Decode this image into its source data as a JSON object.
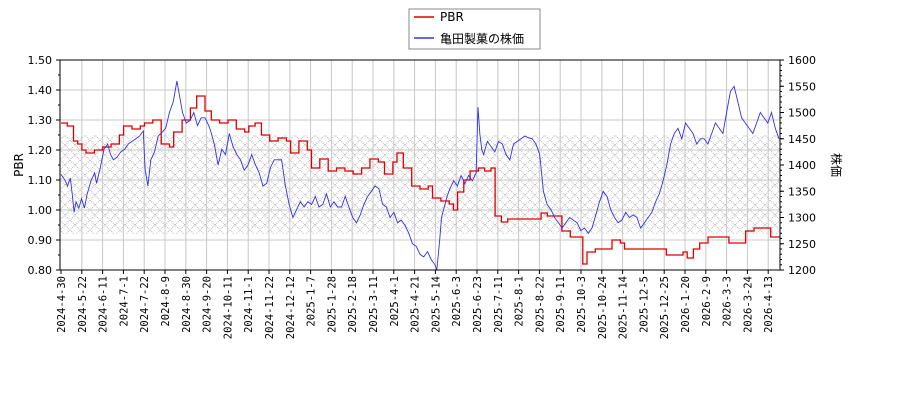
{
  "chart_data": {
    "type": "line",
    "title": "",
    "legend": {
      "position": "top-center",
      "entries": [
        {
          "label": "PBR",
          "color": "#dd0000"
        },
        {
          "label": "亀田製菓の株価",
          "color": "#3333dd"
        }
      ]
    },
    "xlabel": "",
    "ylabel_left": "PBR",
    "ylabel_right": "株価",
    "ylim_left": [
      0.8,
      1.5
    ],
    "ylim_right": [
      1200,
      1600
    ],
    "yticks_left": [
      "0.80",
      "0.90",
      "1.00",
      "1.10",
      "1.20",
      "1.30",
      "1.40",
      "1.50"
    ],
    "yticks_right": [
      "1200",
      "1250",
      "1300",
      "1350",
      "1400",
      "1450",
      "1500",
      "1550",
      "1600"
    ],
    "grid": true,
    "hatched_band_pbr": [
      0.92,
      1.25
    ],
    "categories": [
      "2024-4-30",
      "2024-5-22",
      "2024-6-11",
      "2024-7-1",
      "2024-7-22",
      "2024-8-9",
      "2024-8-30",
      "2024-9-20",
      "2024-10-11",
      "2024-11-1",
      "2024-11-22",
      "2024-12-12",
      "2025-1-7",
      "2025-1-28",
      "2025-2-18",
      "2025-3-11",
      "2025-4-1",
      "2025-4-21",
      "2025-5-14",
      "2025-6-3",
      "2025-6-23",
      "2025-7-11",
      "2025-8-1",
      "2025-8-22",
      "2025-9-11",
      "2025-10-3",
      "2025-10-24",
      "2025-11-14",
      "2025-12-5",
      "2025-12-25",
      "2026-1-20",
      "2026-2-9",
      "2026-3-3",
      "2026-3-24",
      "2026-4-13"
    ],
    "series": [
      {
        "name": "PBR",
        "axis": "left",
        "color": "#dd0000",
        "points": [
          [
            0.0,
            1.29
          ],
          [
            0.3,
            1.28
          ],
          [
            0.6,
            1.23
          ],
          [
            0.8,
            1.22
          ],
          [
            1.0,
            1.2
          ],
          [
            1.2,
            1.19
          ],
          [
            1.6,
            1.2
          ],
          [
            2.0,
            1.21
          ],
          [
            2.4,
            1.22
          ],
          [
            2.8,
            1.25
          ],
          [
            3.0,
            1.28
          ],
          [
            3.4,
            1.27
          ],
          [
            3.8,
            1.28
          ],
          [
            4.0,
            1.29
          ],
          [
            4.4,
            1.3
          ],
          [
            4.7,
            1.3
          ],
          [
            4.8,
            1.22
          ],
          [
            5.2,
            1.21
          ],
          [
            5.4,
            1.26
          ],
          [
            5.8,
            1.3
          ],
          [
            6.2,
            1.34
          ],
          [
            6.5,
            1.38
          ],
          [
            6.9,
            1.33
          ],
          [
            7.2,
            1.3
          ],
          [
            7.6,
            1.29
          ],
          [
            8.0,
            1.3
          ],
          [
            8.4,
            1.27
          ],
          [
            8.8,
            1.26
          ],
          [
            9.0,
            1.28
          ],
          [
            9.3,
            1.29
          ],
          [
            9.6,
            1.25
          ],
          [
            10.0,
            1.23
          ],
          [
            10.4,
            1.24
          ],
          [
            10.8,
            1.23
          ],
          [
            11.0,
            1.19
          ],
          [
            11.4,
            1.23
          ],
          [
            11.8,
            1.2
          ],
          [
            12.0,
            1.14
          ],
          [
            12.4,
            1.17
          ],
          [
            12.8,
            1.13
          ],
          [
            13.2,
            1.14
          ],
          [
            13.6,
            1.13
          ],
          [
            14.0,
            1.12
          ],
          [
            14.4,
            1.14
          ],
          [
            14.8,
            1.17
          ],
          [
            15.2,
            1.16
          ],
          [
            15.5,
            1.12
          ],
          [
            15.9,
            1.16
          ],
          [
            16.1,
            1.19
          ],
          [
            16.4,
            1.14
          ],
          [
            16.8,
            1.08
          ],
          [
            17.2,
            1.07
          ],
          [
            17.6,
            1.08
          ],
          [
            17.8,
            1.04
          ],
          [
            18.2,
            1.03
          ],
          [
            18.6,
            1.02
          ],
          [
            18.8,
            1.0
          ],
          [
            19.0,
            1.06
          ],
          [
            19.3,
            1.1
          ],
          [
            19.6,
            1.13
          ],
          [
            20.0,
            1.14
          ],
          [
            20.3,
            1.13
          ],
          [
            20.6,
            1.14
          ],
          [
            20.8,
            0.98
          ],
          [
            21.1,
            0.96
          ],
          [
            21.4,
            0.97
          ],
          [
            21.8,
            0.97
          ],
          [
            22.2,
            0.97
          ],
          [
            22.6,
            0.97
          ],
          [
            23.0,
            0.99
          ],
          [
            23.3,
            0.98
          ],
          [
            23.8,
            0.98
          ],
          [
            24.0,
            0.93
          ],
          [
            24.4,
            0.91
          ],
          [
            24.8,
            0.91
          ],
          [
            25.0,
            0.82
          ],
          [
            25.2,
            0.86
          ],
          [
            25.6,
            0.87
          ],
          [
            26.0,
            0.87
          ],
          [
            26.4,
            0.9
          ],
          [
            26.8,
            0.89
          ],
          [
            27.0,
            0.87
          ],
          [
            27.6,
            0.87
          ],
          [
            28.0,
            0.87
          ],
          [
            28.6,
            0.87
          ],
          [
            29.0,
            0.85
          ],
          [
            29.4,
            0.85
          ],
          [
            29.8,
            0.86
          ],
          [
            30.0,
            0.84
          ],
          [
            30.3,
            0.87
          ],
          [
            30.6,
            0.89
          ],
          [
            31.0,
            0.91
          ],
          [
            31.6,
            0.91
          ],
          [
            32.0,
            0.89
          ],
          [
            32.6,
            0.89
          ],
          [
            32.8,
            0.93
          ],
          [
            33.2,
            0.94
          ],
          [
            33.6,
            0.94
          ],
          [
            34.0,
            0.91
          ],
          [
            34.4,
            0.91
          ]
        ]
      },
      {
        "name": "亀田製菓の株価",
        "axis": "right",
        "color": "#3333dd",
        "points": [
          [
            0.0,
            1382
          ],
          [
            0.2,
            1372
          ],
          [
            0.35,
            1360
          ],
          [
            0.5,
            1375
          ],
          [
            0.6,
            1345
          ],
          [
            0.7,
            1310
          ],
          [
            0.8,
            1330
          ],
          [
            0.95,
            1318
          ],
          [
            1.1,
            1336
          ],
          [
            1.25,
            1318
          ],
          [
            1.4,
            1345
          ],
          [
            1.6,
            1370
          ],
          [
            1.8,
            1385
          ],
          [
            1.9,
            1365
          ],
          [
            2.1,
            1395
          ],
          [
            2.3,
            1430
          ],
          [
            2.5,
            1440
          ],
          [
            2.65,
            1420
          ],
          [
            2.8,
            1410
          ],
          [
            3.0,
            1415
          ],
          [
            3.2,
            1425
          ],
          [
            3.4,
            1430
          ],
          [
            3.6,
            1440
          ],
          [
            3.8,
            1445
          ],
          [
            4.0,
            1450
          ],
          [
            4.2,
            1455
          ],
          [
            4.4,
            1465
          ],
          [
            4.5,
            1392
          ],
          [
            4.65,
            1360
          ],
          [
            4.8,
            1410
          ],
          [
            5.0,
            1425
          ],
          [
            5.2,
            1455
          ],
          [
            5.4,
            1462
          ],
          [
            5.6,
            1470
          ],
          [
            5.8,
            1500
          ],
          [
            6.0,
            1520
          ],
          [
            6.2,
            1560
          ],
          [
            6.35,
            1530
          ],
          [
            6.5,
            1500
          ],
          [
            6.7,
            1480
          ],
          [
            6.9,
            1485
          ],
          [
            7.1,
            1500
          ],
          [
            7.3,
            1475
          ],
          [
            7.5,
            1490
          ],
          [
            7.7,
            1490
          ],
          [
            7.9,
            1475
          ],
          [
            8.0,
            1465
          ],
          [
            8.2,
            1440
          ],
          [
            8.4,
            1400
          ],
          [
            8.6,
            1430
          ],
          [
            8.8,
            1420
          ],
          [
            9.0,
            1460
          ],
          [
            9.2,
            1435
          ],
          [
            9.4,
            1420
          ],
          [
            9.6,
            1410
          ],
          [
            9.8,
            1390
          ],
          [
            10.0,
            1400
          ],
          [
            10.2,
            1420
          ],
          [
            10.4,
            1400
          ],
          [
            10.6,
            1385
          ],
          [
            10.8,
            1360
          ],
          [
            11.0,
            1365
          ],
          [
            11.2,
            1395
          ],
          [
            11.4,
            1410
          ],
          [
            11.6,
            1410
          ],
          [
            11.8,
            1410
          ],
          [
            12.0,
            1360
          ],
          [
            12.2,
            1325
          ],
          [
            12.4,
            1300
          ],
          [
            12.6,
            1315
          ],
          [
            12.8,
            1330
          ],
          [
            13.0,
            1320
          ],
          [
            13.2,
            1330
          ],
          [
            13.4,
            1325
          ],
          [
            13.6,
            1340
          ],
          [
            13.8,
            1320
          ],
          [
            14.0,
            1325
          ],
          [
            14.2,
            1345
          ],
          [
            14.4,
            1320
          ],
          [
            14.6,
            1330
          ],
          [
            14.8,
            1320
          ],
          [
            15.0,
            1320
          ],
          [
            15.2,
            1340
          ],
          [
            15.4,
            1320
          ],
          [
            15.6,
            1300
          ],
          [
            15.8,
            1290
          ],
          [
            16.0,
            1305
          ],
          [
            16.2,
            1325
          ],
          [
            16.4,
            1340
          ],
          [
            16.6,
            1350
          ],
          [
            16.8,
            1360
          ],
          [
            17.0,
            1355
          ],
          [
            17.2,
            1325
          ],
          [
            17.4,
            1320
          ],
          [
            17.6,
            1300
          ],
          [
            17.8,
            1310
          ],
          [
            18.0,
            1290
          ],
          [
            18.2,
            1295
          ],
          [
            18.4,
            1285
          ],
          [
            18.6,
            1270
          ],
          [
            18.8,
            1250
          ],
          [
            19.0,
            1245
          ],
          [
            19.2,
            1230
          ],
          [
            19.4,
            1225
          ],
          [
            19.6,
            1235
          ],
          [
            19.8,
            1220
          ],
          [
            20.0,
            1210
          ],
          [
            20.1,
            1200
          ],
          [
            20.25,
            1255
          ],
          [
            20.35,
            1300
          ],
          [
            20.5,
            1320
          ],
          [
            20.65,
            1340
          ],
          [
            20.8,
            1355
          ],
          [
            21.0,
            1370
          ],
          [
            21.2,
            1360
          ],
          [
            21.4,
            1380
          ],
          [
            21.6,
            1365
          ],
          [
            21.8,
            1380
          ],
          [
            22.0,
            1370
          ],
          [
            22.2,
            1385
          ],
          [
            22.3,
            1510
          ],
          [
            22.4,
            1460
          ],
          [
            22.5,
            1430
          ],
          [
            22.6,
            1420
          ],
          [
            22.8,
            1445
          ],
          [
            23.0,
            1435
          ],
          [
            23.2,
            1425
          ],
          [
            23.4,
            1445
          ],
          [
            23.6,
            1440
          ],
          [
            23.8,
            1420
          ],
          [
            24.0,
            1410
          ],
          [
            24.2,
            1440
          ],
          [
            24.4,
            1445
          ],
          [
            24.6,
            1450
          ],
          [
            24.8,
            1455
          ],
          [
            25.0,
            1452
          ],
          [
            25.2,
            1450
          ],
          [
            25.4,
            1440
          ],
          [
            25.6,
            1420
          ],
          [
            25.8,
            1350
          ],
          [
            26.0,
            1325
          ],
          [
            26.2,
            1315
          ],
          [
            26.4,
            1300
          ],
          [
            26.6,
            1290
          ],
          [
            26.8,
            1280
          ],
          [
            27.0,
            1290
          ],
          [
            27.2,
            1300
          ],
          [
            27.4,
            1295
          ],
          [
            27.6,
            1290
          ],
          [
            27.8,
            1275
          ],
          [
            28.0,
            1280
          ],
          [
            28.2,
            1270
          ],
          [
            28.4,
            1280
          ],
          [
            28.6,
            1305
          ],
          [
            28.8,
            1330
          ],
          [
            29.0,
            1350
          ],
          [
            29.2,
            1340
          ],
          [
            29.4,
            1315
          ],
          [
            29.6,
            1300
          ],
          [
            29.8,
            1290
          ],
          [
            30.0,
            1295
          ],
          [
            30.2,
            1310
          ],
          [
            30.4,
            1300
          ],
          [
            30.6,
            1305
          ],
          [
            30.8,
            1300
          ],
          [
            31.0,
            1280
          ],
          [
            31.2,
            1290
          ],
          [
            31.4,
            1300
          ],
          [
            31.6,
            1310
          ],
          [
            31.8,
            1330
          ],
          [
            32.0,
            1345
          ],
          [
            32.2,
            1370
          ],
          [
            32.4,
            1400
          ],
          [
            32.6,
            1440
          ],
          [
            32.8,
            1460
          ],
          [
            33.0,
            1470
          ],
          [
            33.2,
            1450
          ],
          [
            33.4,
            1480
          ],
          [
            33.6,
            1470
          ],
          [
            33.8,
            1460
          ],
          [
            34.0,
            1440
          ],
          [
            34.2,
            1450
          ],
          [
            34.4,
            1450
          ],
          [
            34.6,
            1440
          ],
          [
            34.8,
            1460
          ],
          [
            35.0,
            1480
          ],
          [
            35.2,
            1470
          ],
          [
            35.4,
            1460
          ],
          [
            35.6,
            1500
          ],
          [
            35.8,
            1540
          ],
          [
            36.0,
            1550
          ],
          [
            36.2,
            1520
          ],
          [
            36.4,
            1490
          ],
          [
            36.6,
            1480
          ],
          [
            36.8,
            1470
          ],
          [
            37.0,
            1460
          ],
          [
            37.2,
            1480
          ],
          [
            37.4,
            1500
          ],
          [
            37.6,
            1490
          ],
          [
            37.8,
            1480
          ],
          [
            38.0,
            1500
          ],
          [
            38.2,
            1470
          ],
          [
            38.4,
            1450
          ]
        ]
      }
    ]
  }
}
